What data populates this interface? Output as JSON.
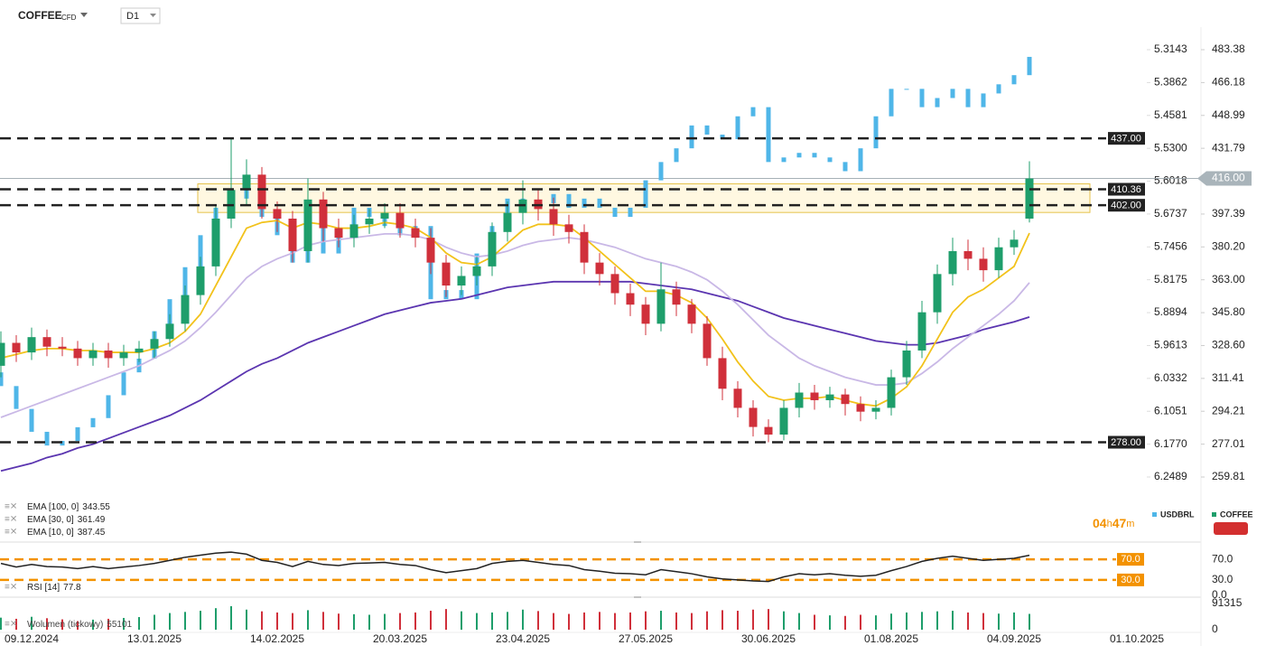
{
  "header": {
    "symbol": "COFFEE",
    "symbol_type": "CFD",
    "interval": "D1"
  },
  "chart_data": {
    "type": "candlestick",
    "categories": [
      null,
      null,
      "09.12.2024",
      null,
      null,
      null,
      null,
      null,
      null,
      null,
      "13.01.2025",
      null,
      null,
      null,
      null,
      null,
      null,
      null,
      "14.02.2025",
      null,
      null,
      null,
      null,
      null,
      null,
      null,
      "20.03.2025",
      null,
      null,
      null,
      null,
      null,
      null,
      null,
      "23.04.2025",
      null,
      null,
      null,
      null,
      null,
      null,
      null,
      "27.05.2025",
      null,
      null,
      null,
      null,
      null,
      null,
      null,
      "30.06.2025",
      null,
      null,
      null,
      null,
      null,
      null,
      null,
      "01.08.2025",
      null,
      null,
      null,
      null,
      null,
      null,
      null,
      "04.09.2025",
      null,
      null,
      null,
      null,
      null,
      null,
      null,
      "01.10.2025"
    ],
    "ylim": [
      259.81,
      483.38
    ],
    "yticks": [
      483.38,
      466.18,
      448.99,
      431.79,
      397.39,
      {
        "value": 380.2,
        "label": "380.20"
      },
      {
        "value": 363,
        "label": "363.00"
      },
      {
        "value": 345.8,
        "label": "345.80"
      },
      {
        "value": 328.6,
        "label": "328.60"
      },
      311.41,
      294.21,
      277.01,
      259.81
    ],
    "y2lim": [
      6.2489,
      5.3143
    ],
    "y2ticks": [
      5.3143,
      5.3862,
      5.4581,
      {
        "value": 5.53,
        "label": "5.5300"
      },
      5.6018,
      5.6737,
      5.7456,
      5.8175,
      5.8894,
      5.9613,
      6.0332,
      6.1051,
      {
        "value": 6.177,
        "label": "6.1770"
      },
      6.2489
    ],
    "up_color": "#1e9e6b",
    "down_color": "#d0303b",
    "series": [
      {
        "name": "COFFEE",
        "color": "#d32f2f",
        "open": [
          318,
          330,
          325,
          333,
          328,
          327,
          322,
          326,
          322,
          325,
          327,
          332,
          340,
          355,
          370,
          395,
          410,
          418,
          400,
          395,
          378,
          405,
          390,
          385,
          392,
          395,
          398,
          390,
          385,
          372,
          360,
          365,
          370,
          388,
          398,
          405,
          400,
          392,
          388,
          372,
          366,
          356,
          350,
          340,
          358,
          350,
          340,
          322,
          306,
          296,
          286,
          282,
          296,
          304,
          300,
          303,
          298,
          294,
          296,
          312,
          326,
          346,
          366,
          378,
          374,
          368,
          380,
          395,
          null,
          null,
          null,
          null,
          null,
          null,
          null
        ],
        "high": [
          336,
          334,
          338,
          337,
          333,
          331,
          330,
          330,
          329,
          331,
          336,
          345,
          360,
          375,
          402,
          437,
          426,
          422,
          404,
          399,
          416,
          409,
          395,
          397,
          400,
          403,
          403,
          395,
          390,
          376,
          370,
          375,
          393,
          404,
          415,
          410,
          406,
          397,
          392,
          377,
          370,
          361,
          354,
          372,
          362,
          353,
          344,
          328,
          310,
          300,
          290,
          300,
          309,
          308,
          307,
          306,
          302,
          300,
          316,
          331,
          352,
          371,
          385,
          384,
          380,
          385,
          389,
          425,
          null,
          null,
          null,
          null,
          null,
          null,
          null
        ],
        "low": [
          312,
          320,
          321,
          323,
          323,
          318,
          318,
          317,
          318,
          320,
          322,
          328,
          336,
          350,
          365,
          390,
          402,
          395,
          388,
          372,
          372,
          383,
          380,
          380,
          387,
          390,
          385,
          380,
          366,
          354,
          355,
          360,
          365,
          383,
          392,
          394,
          386,
          382,
          366,
          360,
          350,
          344,
          334,
          336,
          344,
          335,
          318,
          300,
          291,
          281,
          278,
          279,
          291,
          295,
          296,
          292,
          289,
          290,
          292,
          308,
          322,
          340,
          360,
          368,
          362,
          364,
          376,
          393,
          null,
          null,
          null,
          null,
          null,
          null,
          null
        ],
        "close": [
          330,
          325,
          333,
          328,
          327,
          322,
          326,
          322,
          325,
          327,
          332,
          340,
          355,
          370,
          395,
          410,
          418,
          400,
          395,
          378,
          405,
          390,
          385,
          392,
          395,
          398,
          390,
          385,
          372,
          360,
          365,
          370,
          388,
          398,
          405,
          400,
          392,
          388,
          372,
          366,
          356,
          350,
          340,
          358,
          350,
          340,
          322,
          306,
          296,
          286,
          282,
          296,
          304,
          300,
          303,
          298,
          294,
          296,
          312,
          326,
          346,
          366,
          378,
          374,
          368,
          380,
          384,
          416,
          null,
          null,
          null,
          null,
          null,
          null,
          null
        ]
      },
      {
        "name": "USDBRL",
        "color": "#4fb6e8",
        "axis": "y2",
        "open": [
          6.02,
          6.05,
          6.1,
          6.15,
          6.18,
          6.17,
          6.14,
          6.12,
          6.07,
          6.02,
          5.99,
          5.93,
          5.86,
          5.79,
          5.72,
          5.66,
          5.62,
          5.64,
          5.68,
          5.72,
          5.78,
          5.7,
          5.76,
          5.72,
          5.66,
          5.68,
          5.7,
          5.72,
          5.7,
          5.86,
          5.84,
          5.86,
          5.76,
          5.7,
          5.64,
          5.66,
          5.65,
          5.63,
          5.66,
          5.64,
          5.66,
          5.68,
          5.66,
          5.6,
          5.56,
          5.53,
          5.48,
          5.5,
          5.51,
          5.46,
          5.44,
          5.56,
          5.55,
          5.54,
          5.55,
          5.56,
          5.58,
          5.53,
          5.46,
          5.4,
          5.4,
          5.44,
          5.42,
          5.4,
          5.44,
          5.41,
          5.39,
          5.37,
          null,
          null,
          null,
          null,
          null,
          null,
          null
        ],
        "close": [
          6.05,
          6.1,
          6.15,
          6.18,
          6.17,
          6.14,
          6.12,
          6.07,
          6.02,
          5.99,
          5.93,
          5.86,
          5.79,
          5.72,
          5.66,
          5.62,
          5.64,
          5.68,
          5.72,
          5.78,
          5.7,
          5.76,
          5.72,
          5.66,
          5.68,
          5.7,
          5.72,
          5.7,
          5.86,
          5.84,
          5.86,
          5.76,
          5.7,
          5.64,
          5.66,
          5.65,
          5.63,
          5.66,
          5.64,
          5.66,
          5.68,
          5.66,
          5.6,
          5.56,
          5.53,
          5.48,
          5.5,
          5.51,
          5.46,
          5.44,
          5.56,
          5.55,
          5.54,
          5.55,
          5.56,
          5.58,
          5.53,
          5.46,
          5.4,
          5.4,
          5.44,
          5.42,
          5.4,
          5.44,
          5.41,
          5.39,
          5.37,
          5.33,
          null,
          null,
          null,
          null,
          null,
          null,
          null
        ]
      }
    ],
    "indicators": [
      {
        "name": "EMA [100,  0]",
        "color": "#5b35b0",
        "last": 343.55,
        "values": [
          263,
          265,
          267,
          270,
          272,
          275,
          277,
          280,
          283,
          286,
          289,
          292,
          296,
          300,
          305,
          310,
          315,
          319,
          322,
          326,
          330,
          333,
          336,
          339,
          342,
          345,
          347,
          349,
          351,
          352,
          353,
          355,
          357,
          359,
          360,
          361,
          362,
          362,
          362,
          362,
          362,
          362,
          361,
          360,
          359,
          358,
          356,
          354,
          352,
          349,
          346,
          343,
          341,
          339,
          337,
          335,
          333,
          331,
          330,
          329,
          329,
          330,
          332,
          334,
          337,
          339,
          341,
          343.55,
          null,
          null,
          null,
          null,
          null,
          null,
          null
        ]
      },
      {
        "name": "EMA [30,  0]",
        "color": "#c9b8e6",
        "last": 361.49,
        "values": [
          291,
          294,
          297,
          300,
          303,
          306,
          309,
          312,
          315,
          318,
          322,
          326,
          331,
          338,
          346,
          355,
          364,
          370,
          374,
          377,
          381,
          383,
          384,
          385,
          386,
          387,
          387,
          386,
          384,
          380,
          377,
          375,
          376,
          378,
          381,
          383,
          384,
          385,
          384,
          382,
          380,
          377,
          374,
          372,
          370,
          367,
          363,
          357,
          350,
          342,
          334,
          328,
          322,
          318,
          315,
          312,
          310,
          308,
          308,
          309,
          314,
          320,
          327,
          333,
          339,
          345,
          352,
          361.49,
          null,
          null,
          null,
          null,
          null,
          null,
          null
        ]
      },
      {
        "name": "EMA [10,  0]",
        "color": "#f2c21b",
        "last": 387.45,
        "values": [
          322,
          324,
          326,
          327,
          327,
          326,
          326,
          325,
          325,
          325,
          327,
          330,
          336,
          345,
          360,
          375,
          390,
          393,
          394,
          390,
          393,
          392,
          390,
          390,
          391,
          393,
          392,
          390,
          385,
          377,
          372,
          371,
          375,
          382,
          389,
          392,
          392,
          391,
          385,
          378,
          371,
          364,
          357,
          357,
          355,
          351,
          343,
          332,
          320,
          310,
          302,
          300,
          301,
          301,
          302,
          300,
          298,
          297,
          301,
          307,
          318,
          332,
          346,
          354,
          358,
          364,
          370,
          387.45,
          null,
          null,
          null,
          null,
          null,
          null,
          null
        ]
      }
    ],
    "levels": [
      {
        "value": 437,
        "label": "437.00"
      },
      {
        "value": 410.36,
        "label": "410.36"
      },
      {
        "value": 402,
        "label": "402.00"
      },
      {
        "value": 278,
        "label": "278.00"
      }
    ],
    "last_price": {
      "value": 416,
      "label": "416.00"
    },
    "countdown": [
      "04",
      "h",
      "47",
      "m"
    ],
    "rsi": {
      "name": "RSI [14]",
      "last": 77.8,
      "color": "#222222",
      "level_color": "#f39200",
      "ylim": [
        0,
        100
      ],
      "yticks": [
        {
          "value": 70,
          "label": "70.0"
        },
        {
          "value": 30,
          "label": "30.0"
        },
        {
          "value": 0,
          "label": "0.0"
        }
      ],
      "values": [
        62,
        55,
        60,
        56,
        55,
        52,
        56,
        52,
        55,
        58,
        62,
        68,
        74,
        78,
        82,
        84,
        80,
        68,
        64,
        56,
        66,
        60,
        58,
        62,
        63,
        64,
        60,
        58,
        50,
        44,
        48,
        52,
        62,
        66,
        68,
        64,
        60,
        58,
        50,
        47,
        43,
        42,
        40,
        50,
        46,
        42,
        36,
        32,
        30,
        28,
        27,
        36,
        42,
        40,
        42,
        39,
        37,
        39,
        48,
        56,
        66,
        72,
        76,
        72,
        68,
        70,
        72,
        77.8,
        null,
        null,
        null,
        null,
        null,
        null,
        null
      ]
    },
    "volume": {
      "name": "Wolumen (tickowy)",
      "last": 55101,
      "ylim": [
        0,
        91315
      ],
      "yticks": [
        91315,
        0
      ],
      "values": [
        42000,
        38000,
        45000,
        40000,
        36000,
        30000,
        35000,
        38000,
        41000,
        44000,
        52000,
        58000,
        62000,
        66000,
        75000,
        82000,
        70000,
        64000,
        60000,
        58000,
        68000,
        62000,
        56000,
        54000,
        52000,
        55000,
        58000,
        60000,
        66000,
        72000,
        64000,
        58000,
        60000,
        62000,
        70000,
        65000,
        58000,
        55000,
        60000,
        62000,
        58000,
        60000,
        64000,
        66000,
        60000,
        58000,
        64000,
        68000,
        66000,
        70000,
        72000,
        64000,
        58000,
        52000,
        50000,
        48000,
        52000,
        50000,
        56000,
        60000,
        62000,
        64000,
        66000,
        60000,
        58000,
        56000,
        60000,
        55101,
        null,
        null,
        null,
        null,
        null,
        null,
        null
      ]
    }
  }
}
